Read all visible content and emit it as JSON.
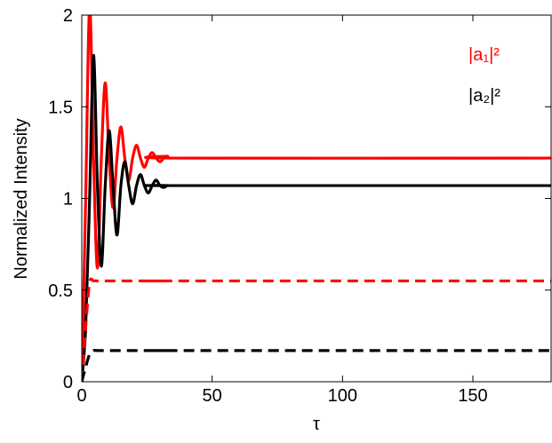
{
  "chart_data": {
    "type": "line",
    "xlabel": "τ",
    "ylabel": "Normalized Intensity",
    "x": [
      0,
      1.5,
      3,
      4.5,
      6,
      7.5,
      9,
      10.5,
      12,
      13.5,
      15,
      16.5,
      18,
      19.5,
      21,
      22.5,
      24,
      25.5,
      27,
      28.5,
      30,
      31.5,
      33,
      36,
      180
    ],
    "series": [
      {
        "name": "|a₁|²",
        "color": "#ff0000",
        "dash": false,
        "values": [
          0,
          1.0,
          2.05,
          1.22,
          0.62,
          1.22,
          1.63,
          1.22,
          0.95,
          1.22,
          1.39,
          1.22,
          1.1,
          1.22,
          1.29,
          1.22,
          1.17,
          1.22,
          1.25,
          1.22,
          1.2,
          1.22,
          1.23,
          1.22,
          1.22
        ]
      },
      {
        "name": "|a₂|²",
        "color": "#000000",
        "dash": false,
        "values": [
          0,
          0.3,
          1.0,
          1.78,
          1.07,
          0.63,
          1.07,
          1.37,
          1.07,
          0.8,
          1.07,
          1.2,
          1.07,
          0.97,
          1.07,
          1.13,
          1.07,
          1.03,
          1.07,
          1.1,
          1.07,
          1.06,
          1.07,
          1.07,
          1.07
        ]
      },
      {
        "color": "#ff0000",
        "dash": true,
        "values": [
          0,
          0.3,
          0.54,
          0.55,
          0.55,
          0.55,
          0.55,
          0.55,
          0.55,
          0.55,
          0.55,
          0.55,
          0.55,
          0.55,
          0.55,
          0.55,
          0.55,
          0.55,
          0.55,
          0.55,
          0.55,
          0.55,
          0.55,
          0.55,
          0.55
        ]
      },
      {
        "color": "#000000",
        "dash": true,
        "values": [
          0,
          0.08,
          0.15,
          0.17,
          0.17,
          0.17,
          0.17,
          0.17,
          0.17,
          0.17,
          0.17,
          0.17,
          0.17,
          0.17,
          0.17,
          0.17,
          0.17,
          0.17,
          0.17,
          0.17,
          0.17,
          0.17,
          0.17,
          0.17,
          0.17
        ]
      }
    ],
    "xlim": [
      0,
      180
    ],
    "xticks": [
      0,
      50,
      100,
      150
    ],
    "ylim": [
      0,
      2
    ],
    "yticks": [
      0,
      0.5,
      1,
      1.5,
      2
    ],
    "grid": false,
    "legend": "upper right"
  }
}
